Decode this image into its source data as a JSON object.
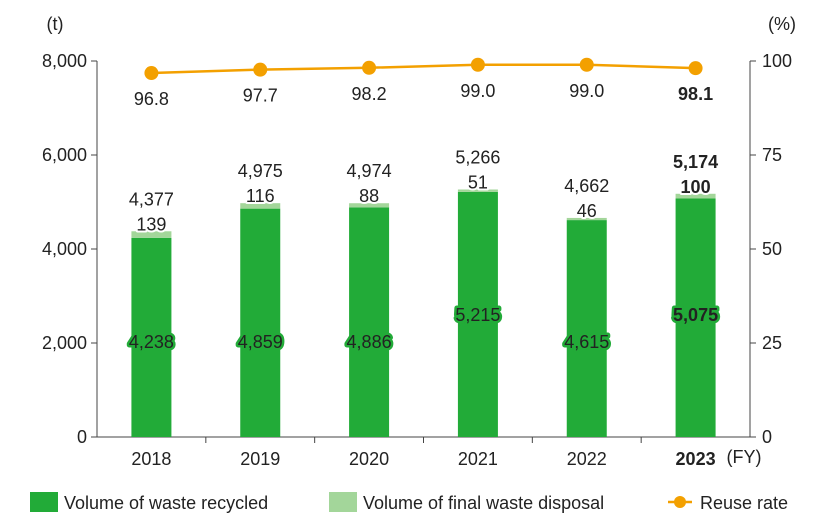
{
  "chart_data": {
    "type": "bar",
    "title": "",
    "categories": [
      "2018",
      "2019",
      "2020",
      "2021",
      "2022",
      "2023"
    ],
    "highlight_category": "2023",
    "x_unit": "(FY)",
    "y_left_unit": "(t)",
    "y_right_unit": "(%)",
    "y_left_ticks": [
      "8,000",
      "6,000",
      "4,000",
      "2,000",
      "0"
    ],
    "y_right_ticks": [
      "100",
      "75",
      "50",
      "25",
      "0"
    ],
    "ylim_left": [
      0,
      8000
    ],
    "ylim_right": [
      0,
      100
    ],
    "series": [
      {
        "name": "Volume of waste recycled",
        "type": "stacked-bar",
        "color": "#22ab38",
        "values": [
          4238,
          4859,
          4886,
          5215,
          4615,
          5075
        ],
        "labels": [
          "4,238",
          "4,859",
          "4,886",
          "5,215",
          "4,615",
          "5,075"
        ]
      },
      {
        "name": "Volume of final waste disposal",
        "type": "stacked-bar",
        "color": "#a3d69a",
        "values": [
          139,
          116,
          88,
          51,
          46,
          100
        ],
        "labels": [
          "139",
          "116",
          "88",
          "51",
          "46",
          "100"
        ]
      },
      {
        "name": "Reuse rate",
        "type": "line",
        "axis": "right",
        "color": "#f3a000",
        "values": [
          96.8,
          97.7,
          98.2,
          99.0,
          99.0,
          98.1
        ],
        "labels": [
          "96.8",
          "97.7",
          "98.2",
          "99.0",
          "99.0",
          "98.1"
        ]
      }
    ],
    "totals": [
      4377,
      4975,
      4974,
      5266,
      4662,
      5174
    ],
    "total_labels": [
      "4,377",
      "4,975",
      "4,974",
      "5,266",
      "4,662",
      "5,174"
    ],
    "grid": false,
    "legend_position": "bottom"
  }
}
